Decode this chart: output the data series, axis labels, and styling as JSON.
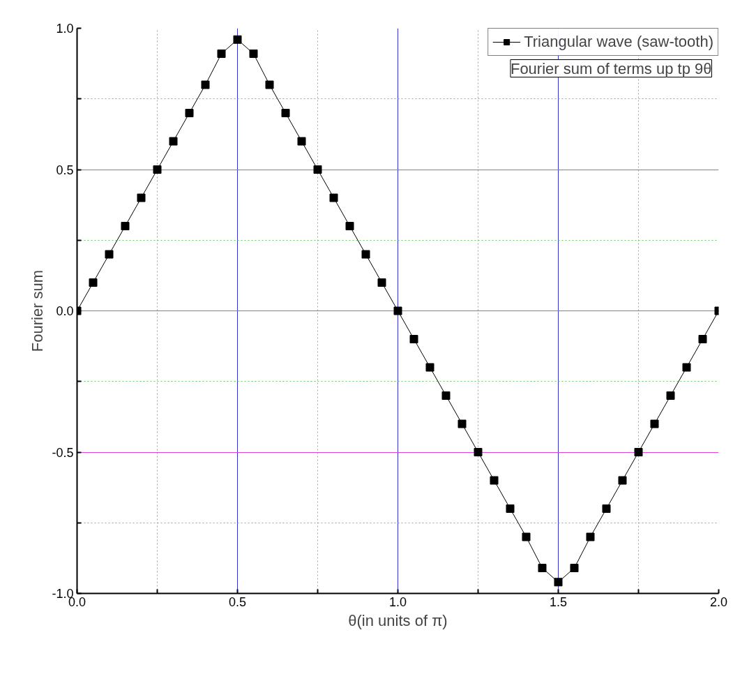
{
  "chart_data": {
    "type": "line",
    "xlabel": "θ(in units of π)",
    "ylabel": "Fourier sum",
    "annotations": [
      "Fourier sum of terms up tp 9θ"
    ],
    "x": [
      0,
      0.05,
      0.1,
      0.15,
      0.2,
      0.25,
      0.3,
      0.35,
      0.4,
      0.45,
      0.5,
      0.55,
      0.6,
      0.65,
      0.7,
      0.75,
      0.8,
      0.85,
      0.9,
      0.95,
      1.0,
      1.05,
      1.1,
      1.15,
      1.2,
      1.25,
      1.3,
      1.35,
      1.4,
      1.45,
      1.5,
      1.55,
      1.6,
      1.65,
      1.7,
      1.75,
      1.8,
      1.85,
      1.9,
      1.95,
      2.0
    ],
    "series": [
      {
        "name": "Triangular wave (saw-tooth)",
        "color": "#000000",
        "values": [
          0,
          0.1,
          0.2,
          0.3,
          0.4,
          0.5,
          0.6,
          0.7,
          0.8,
          0.91,
          0.96,
          0.91,
          0.8,
          0.7,
          0.6,
          0.5,
          0.4,
          0.3,
          0.2,
          0.1,
          0,
          -0.1,
          -0.2,
          -0.3,
          -0.4,
          -0.5,
          -0.6,
          -0.7,
          -0.8,
          -0.91,
          -0.96,
          -0.91,
          -0.8,
          -0.7,
          -0.6,
          -0.5,
          -0.4,
          -0.3,
          -0.2,
          -0.1,
          0
        ]
      }
    ],
    "xlim": [
      0,
      2
    ],
    "ylim": [
      -1,
      1
    ],
    "xticks": [
      {
        "value": 0,
        "label": "0.0"
      },
      {
        "value": 0.25,
        "label": null
      },
      {
        "value": 0.5,
        "label": "0.5"
      },
      {
        "value": 0.75,
        "label": null
      },
      {
        "value": 1,
        "label": "1.0"
      },
      {
        "value": 1.25,
        "label": null
      },
      {
        "value": 1.5,
        "label": "1.5"
      },
      {
        "value": 1.75,
        "label": null
      },
      {
        "value": 2,
        "label": "2.0"
      }
    ],
    "yticks": [
      {
        "value": -1,
        "label": "-1.0"
      },
      {
        "value": -0.75,
        "label": null
      },
      {
        "value": -0.5,
        "label": "-0.5"
      },
      {
        "value": -0.25,
        "label": null
      },
      {
        "value": 0,
        "label": "0.0"
      },
      {
        "value": 0.25,
        "label": null
      },
      {
        "value": 0.5,
        "label": "0.5"
      },
      {
        "value": 0.75,
        "label": null
      },
      {
        "value": 1,
        "label": "1.0"
      }
    ],
    "grid": true,
    "legend": "top right",
    "marker": "square",
    "line_style": "solid"
  }
}
